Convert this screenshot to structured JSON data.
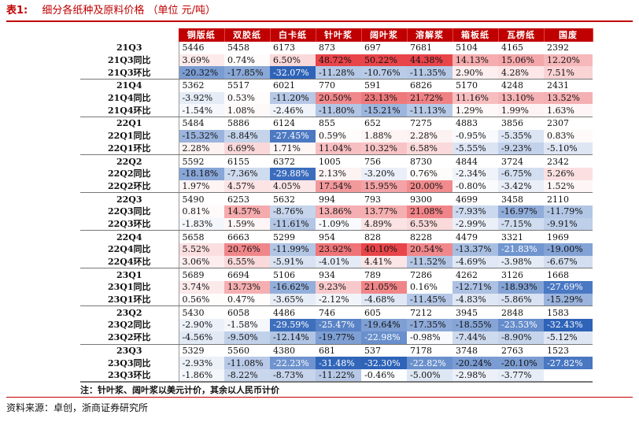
{
  "title": {
    "number": "表1:",
    "text": "细分各纸种及原料价格 （单位 元/吨）"
  },
  "table": {
    "headers": [
      "铜版纸",
      "双胶纸",
      "白卡纸",
      "针叶浆",
      "阔叶浆",
      "溶解浆",
      "箱板纸",
      "瓦楞纸",
      "国废"
    ],
    "rows": [
      {
        "label": "21Q3",
        "values": [
          "5446",
          "5458",
          "6173",
          "873",
          "697",
          "7681",
          "5104",
          "4165",
          "2392"
        ]
      },
      {
        "label": "21Q3同比",
        "values": [
          "3.69%",
          "0.74%",
          "6.50%",
          "48.72%",
          "50.22%",
          "44.38%",
          "14.13%",
          "15.06%",
          "12.20%"
        ]
      },
      {
        "label": "21Q3环比",
        "values": [
          "-20.32%",
          "-17.85%",
          "-32.07%",
          "-11.28%",
          "-10.76%",
          "-11.35%",
          "2.90%",
          "4.28%",
          "7.51%"
        ]
      },
      {
        "label": "21Q4",
        "values": [
          "5362",
          "5517",
          "6021",
          "770",
          "591",
          "6826",
          "5170",
          "4248",
          "2431"
        ]
      },
      {
        "label": "21Q4同比",
        "values": [
          "-3.92%",
          "0.53%",
          "-11.20%",
          "20.50%",
          "23.13%",
          "21.72%",
          "11.16%",
          "13.10%",
          "13.52%"
        ]
      },
      {
        "label": "21Q4环比",
        "values": [
          "-1.54%",
          "1.08%",
          "-2.46%",
          "-11.80%",
          "-15.21%",
          "-11.13%",
          "1.29%",
          "1.99%",
          "1.63%"
        ]
      },
      {
        "label": "22Q1",
        "values": [
          "5484",
          "5886",
          "6124",
          "855",
          "652",
          "7275",
          "4883",
          "3856",
          "2307"
        ]
      },
      {
        "label": "22Q1同比",
        "values": [
          "-15.32%",
          "-8.84%",
          "-27.45%",
          "0.59%",
          "1.88%",
          "2.28%",
          "-0.95%",
          "-5.35%",
          "0.83%"
        ]
      },
      {
        "label": "22Q1环比",
        "values": [
          "2.28%",
          "6.69%",
          "1.71%",
          "11.04%",
          "10.32%",
          "6.58%",
          "-5.55%",
          "-9.23%",
          "-5.10%"
        ]
      },
      {
        "label": "22Q2",
        "values": [
          "5592",
          "6155",
          "6372",
          "1005",
          "756",
          "8730",
          "4844",
          "3724",
          "2342"
        ]
      },
      {
        "label": "22Q2同比",
        "values": [
          "-18.18%",
          "-7.36%",
          "-29.88%",
          "2.13%",
          "-3.20%",
          "0.76%",
          "-2.34%",
          "-6.75%",
          "5.26%"
        ]
      },
      {
        "label": "22Q2环比",
        "values": [
          "1.97%",
          "4.57%",
          "4.05%",
          "17.54%",
          "15.95%",
          "20.00%",
          "-0.80%",
          "-3.42%",
          "1.52%"
        ]
      },
      {
        "label": "22Q3",
        "values": [
          "5490",
          "6253",
          "5632",
          "994",
          "793",
          "9300",
          "4699",
          "3458",
          "2110"
        ]
      },
      {
        "label": "22Q3同比",
        "values": [
          "0.81%",
          "14.57%",
          "-8.76%",
          "13.86%",
          "13.77%",
          "21.08%",
          "-7.93%",
          "-16.97%",
          "-11.79%"
        ]
      },
      {
        "label": "22Q3环比",
        "values": [
          "-1.83%",
          "1.59%",
          "-11.61%",
          "-1.09%",
          "4.89%",
          "6.53%",
          "-2.99%",
          "-7.15%",
          "-9.91%"
        ]
      },
      {
        "label": "22Q4",
        "values": [
          "5658",
          "6663",
          "5299",
          "954",
          "828",
          "8228",
          "4479",
          "3321",
          "1969"
        ]
      },
      {
        "label": "22Q4同比",
        "values": [
          "5.52%",
          "20.76%",
          "-11.99%",
          "23.92%",
          "40.10%",
          "20.54%",
          "-13.37%",
          "-21.83%",
          "-19.00%"
        ]
      },
      {
        "label": "22Q4环比",
        "values": [
          "3.06%",
          "6.55%",
          "-5.91%",
          "-4.01%",
          "4.41%",
          "-11.52%",
          "-4.69%",
          "-3.98%",
          "-6.67%"
        ]
      },
      {
        "label": "23Q1",
        "values": [
          "5689",
          "6694",
          "5106",
          "934",
          "789",
          "7286",
          "4262",
          "3126",
          "1668"
        ]
      },
      {
        "label": "23Q1同比",
        "values": [
          "3.74%",
          "13.73%",
          "-16.62%",
          "9.23%",
          "21.05%",
          "0.16%",
          "-12.71%",
          "-18.93%",
          "-27.69%"
        ]
      },
      {
        "label": "23Q1环比",
        "values": [
          "0.56%",
          "0.47%",
          "-3.65%",
          "-2.12%",
          "-4.68%",
          "-11.45%",
          "-4.83%",
          "-5.86%",
          "-15.29%"
        ]
      },
      {
        "label": "23Q2",
        "values": [
          "5430",
          "6058",
          "4486",
          "746",
          "605",
          "7212",
          "3945",
          "2848",
          "1583"
        ]
      },
      {
        "label": "23Q2同比",
        "values": [
          "-2.90%",
          "-1.58%",
          "-29.59%",
          "-25.47%",
          "-19.64%",
          "-17.35%",
          "-18.55%",
          "-23.53%",
          "-32.43%"
        ]
      },
      {
        "label": "23Q2环比",
        "values": [
          "-4.56%",
          "-9.50%",
          "-12.14%",
          "-19.77%",
          "-22.98%",
          "-0.98%",
          "-7.44%",
          "-8.90%",
          "-5.12%"
        ]
      },
      {
        "label": "23Q3",
        "values": [
          "5329",
          "5560",
          "4380",
          "681",
          "537",
          "7178",
          "3748",
          "2763",
          "1523"
        ]
      },
      {
        "label": "23Q3同比",
        "values": [
          "-2.93%",
          "-11.08%",
          "-22.23%",
          "-31.48%",
          "-32.30%",
          "-22.82%",
          "-20.24%",
          "-20.10%",
          "-27.82%"
        ]
      },
      {
        "label": "23Q3环比",
        "values": [
          "-1.86%",
          "-8.22%",
          "-8.73%",
          "-11.22%",
          "-0.46%",
          "-5.00%",
          "-2.98%",
          "-3.77%",
          ""
        ]
      }
    ]
  },
  "note": "注：针叶浆、阔叶浆以美元计价，其余以人民币计价",
  "source": "资料来源：卓创，浙商证券研究所",
  "colors": {
    "accent": "#c00000",
    "positive": "#e8454a",
    "negative": "#2e63b8"
  }
}
